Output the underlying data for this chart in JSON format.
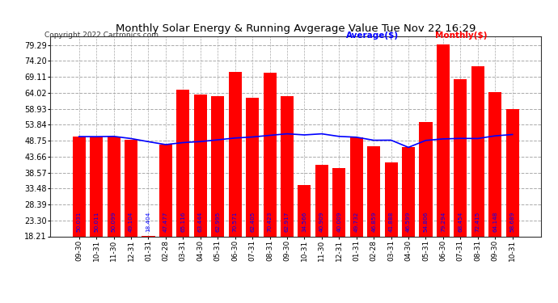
{
  "title": "Monthly Solar Energy & Running Avgerage Value Tue Nov 22 16:29",
  "copyright": "Copyright 2022 Cartronics.com",
  "legend_avg": "Average($)",
  "legend_monthly": "Monthly($)",
  "categories": [
    "09-30",
    "10-31",
    "11-30",
    "12-31",
    "01-31",
    "02-28",
    "03-31",
    "04-30",
    "05-31",
    "06-30",
    "07-31",
    "08-31",
    "09-30",
    "10-31",
    "11-30",
    "12-31",
    "01-31",
    "02-28",
    "03-31",
    "04-30",
    "05-31",
    "06-30",
    "07-31",
    "08-31",
    "09-30",
    "10-31"
  ],
  "bar_values": [
    50.031,
    50.011,
    50.099,
    49.104,
    18.404,
    47.477,
    65.116,
    63.444,
    62.995,
    70.571,
    62.405,
    70.423,
    62.917,
    34.566,
    40.909,
    40.009,
    49.732,
    46.859,
    41.888,
    46.599,
    54.806,
    79.294,
    68.454,
    72.415,
    64.148,
    58.689
  ],
  "avg_values": [
    50.031,
    50.011,
    50.099,
    49.404,
    48.404,
    47.477,
    48.116,
    48.444,
    48.995,
    49.571,
    49.905,
    50.423,
    50.917,
    50.566,
    50.909,
    50.09,
    49.832,
    48.859,
    48.888,
    46.599,
    48.806,
    49.294,
    49.454,
    49.415,
    50.267,
    50.689
  ],
  "bar_color": "#ff0000",
  "avg_color": "#0000ff",
  "title_color": "#000000",
  "bg_color": "#ffffff",
  "yticks": [
    18.21,
    23.3,
    28.39,
    33.48,
    38.57,
    43.66,
    48.75,
    53.84,
    58.93,
    64.02,
    69.11,
    74.2,
    79.29
  ],
  "ylim_min": 18.21,
  "ylim_max": 82.0,
  "grid_color": "#aaaaaa",
  "value_label_color": "#0000ff",
  "value_label_fontsize": 5.2
}
